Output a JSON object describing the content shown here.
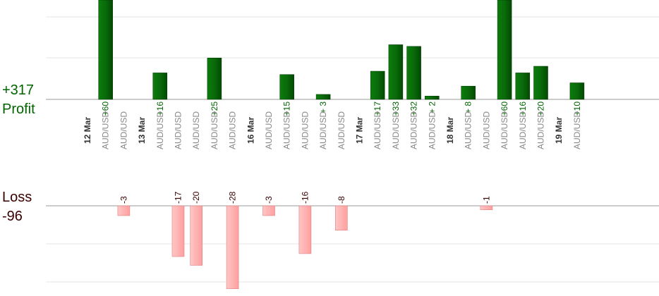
{
  "summary": {
    "profit_total": "+317",
    "profit_label": "Profit",
    "loss_label": "Loss",
    "loss_total": "-96"
  },
  "colors": {
    "profit_bar": "#0a6a0a",
    "profit_bar_edge": "#003300",
    "profit_text": "#006400",
    "loss_bar": "#ffb3b3",
    "loss_bar_edge": "#e08080",
    "loss_text": "#3a0000",
    "date_text": "#333333",
    "pair_text": "#888888",
    "grid": "#e6e6e6",
    "axis": "#999999"
  },
  "chart_data": {
    "type": "bar",
    "grid": true,
    "profit_ylim": [
      0,
      60
    ],
    "loss_ylim": [
      0,
      28
    ],
    "columns": [
      {
        "kind": "date",
        "label": "12 Mar"
      },
      {
        "kind": "trade",
        "label": "AUD/USD",
        "value": 60
      },
      {
        "kind": "trade",
        "label": "AUD/USD",
        "value": -3
      },
      {
        "kind": "date",
        "label": "13 Mar"
      },
      {
        "kind": "trade",
        "label": "AUD/USD",
        "value": 16
      },
      {
        "kind": "trade",
        "label": "AUD/USD",
        "value": -17
      },
      {
        "kind": "trade",
        "label": "AUD/USD",
        "value": -20
      },
      {
        "kind": "trade",
        "label": "AUD/USD",
        "value": 25
      },
      {
        "kind": "trade",
        "label": "AUD/USD",
        "value": -28
      },
      {
        "kind": "date",
        "label": "16 Mar"
      },
      {
        "kind": "trade",
        "label": "AUD/USD",
        "value": -3
      },
      {
        "kind": "trade",
        "label": "AUD/USD",
        "value": 15
      },
      {
        "kind": "trade",
        "label": "AUD/USD",
        "value": -16
      },
      {
        "kind": "trade",
        "label": "AUD/USD",
        "value": 3
      },
      {
        "kind": "trade",
        "label": "AUD/USD",
        "value": -8
      },
      {
        "kind": "date",
        "label": "17 Mar"
      },
      {
        "kind": "trade",
        "label": "AUD/USD",
        "value": 17
      },
      {
        "kind": "trade",
        "label": "AUD/USD",
        "value": 33
      },
      {
        "kind": "trade",
        "label": "AUD/USD",
        "value": 32
      },
      {
        "kind": "trade",
        "label": "AUD/USD",
        "value": 2
      },
      {
        "kind": "date",
        "label": "18 Mar"
      },
      {
        "kind": "trade",
        "label": "AUD/USD",
        "value": 8
      },
      {
        "kind": "trade",
        "label": "AUD/USD",
        "value": -1
      },
      {
        "kind": "trade",
        "label": "AUD/USD",
        "value": 60
      },
      {
        "kind": "trade",
        "label": "AUD/USD",
        "value": 16
      },
      {
        "kind": "trade",
        "label": "AUD/USD",
        "value": 20
      },
      {
        "kind": "date",
        "label": "19 Mar"
      },
      {
        "kind": "trade",
        "label": "AUD/USD",
        "value": 10
      }
    ]
  }
}
